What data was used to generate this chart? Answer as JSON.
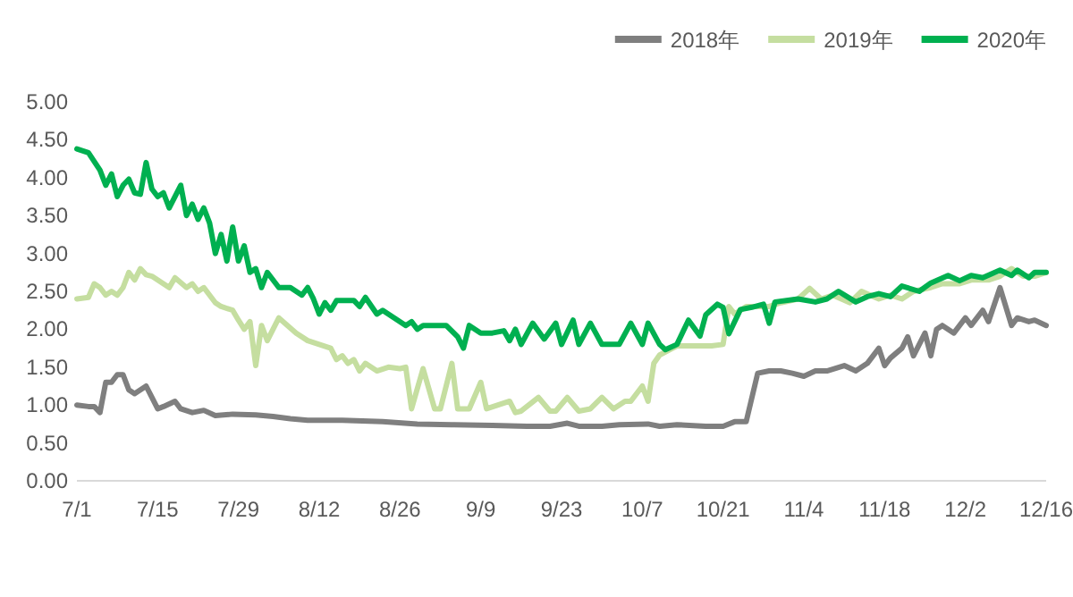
{
  "chart_data": {
    "type": "line",
    "legend": "top right",
    "line_style": "solid",
    "marker": "none",
    "xlim": [
      "--07-01",
      "--12-16"
    ],
    "xticks": [
      {
        "value": "--07-01",
        "label": "7/1"
      },
      {
        "value": "--07-15",
        "label": "7/15"
      },
      {
        "value": "--07-29",
        "label": "7/29"
      },
      {
        "value": "--08-12",
        "label": "8/12"
      },
      {
        "value": "--08-26",
        "label": "8/26"
      },
      {
        "value": "--09-09",
        "label": "9/9"
      },
      {
        "value": "--09-23",
        "label": "9/23"
      },
      {
        "value": "--10-07",
        "label": "10/7"
      },
      {
        "value": "--10-21",
        "label": "10/21"
      },
      {
        "value": "--11-04",
        "label": "11/4"
      },
      {
        "value": "--11-18",
        "label": "11/18"
      },
      {
        "value": "--12-02",
        "label": "12/2"
      },
      {
        "value": "--12-16",
        "label": "12/16"
      }
    ],
    "ylim": [
      0,
      5
    ],
    "yticks": [
      {
        "value": 0,
        "label": "0.00"
      },
      {
        "value": 0.5,
        "label": "0.50"
      },
      {
        "value": 1,
        "label": "1.00"
      },
      {
        "value": 1.5,
        "label": "1.50"
      },
      {
        "value": 2,
        "label": "2.00"
      },
      {
        "value": 2.5,
        "label": "2.50"
      },
      {
        "value": 3,
        "label": "3.00"
      },
      {
        "value": 3.5,
        "label": "3.50"
      },
      {
        "value": 4,
        "label": "4.00"
      },
      {
        "value": 4.5,
        "label": "4.50"
      },
      {
        "value": 5,
        "label": "5.00"
      }
    ],
    "series": [
      {
        "name": "2018年",
        "color": "#7f7f7f",
        "x": [
          "--07-01",
          "--07-03",
          "--07-04",
          "--07-05",
          "--07-06",
          "--07-07",
          "--07-08",
          "--07-09",
          "--07-10",
          "--07-11",
          "--07-13",
          "--07-14",
          "--07-15",
          "--07-16",
          "--07-18",
          "--07-19",
          "--07-21",
          "--07-23",
          "--07-25",
          "--07-28",
          "--08-01",
          "--08-04",
          "--08-07",
          "--08-10",
          "--08-16",
          "--08-23",
          "--08-29",
          "--09-04",
          "--09-11",
          "--09-17",
          "--09-21",
          "--09-24",
          "--09-26",
          "--09-30",
          "--10-03",
          "--10-08",
          "--10-10",
          "--10-13",
          "--10-18",
          "--10-21",
          "--10-23",
          "--10-25",
          "--10-27",
          "--10-29",
          "--10-31",
          "--11-02",
          "--11-04",
          "--11-06",
          "--11-08",
          "--11-11",
          "--11-13",
          "--11-15",
          "--11-17",
          "--11-18",
          "--11-19",
          "--11-21",
          "--11-22",
          "--11-23",
          "--11-25",
          "--11-26",
          "--11-27",
          "--11-28",
          "--11-30",
          "--12-02",
          "--12-03",
          "--12-05",
          "--12-06",
          "--12-08",
          "--12-10",
          "--12-11",
          "--12-13",
          "--12-14",
          "--12-16"
        ],
        "values": [
          1.0,
          0.98,
          0.98,
          0.9,
          1.3,
          1.3,
          1.4,
          1.4,
          1.2,
          1.15,
          1.25,
          1.1,
          0.95,
          0.98,
          1.05,
          0.95,
          0.9,
          0.93,
          0.86,
          0.88,
          0.87,
          0.85,
          0.82,
          0.8,
          0.8,
          0.78,
          0.75,
          0.74,
          0.73,
          0.72,
          0.72,
          0.76,
          0.72,
          0.72,
          0.74,
          0.75,
          0.72,
          0.74,
          0.72,
          0.72,
          0.78,
          0.78,
          1.42,
          1.45,
          1.45,
          1.42,
          1.38,
          1.45,
          1.45,
          1.52,
          1.45,
          1.55,
          1.75,
          1.52,
          1.62,
          1.75,
          1.9,
          1.65,
          1.95,
          1.65,
          2.0,
          2.05,
          1.95,
          2.15,
          2.05,
          2.25,
          2.1,
          2.55,
          2.05,
          2.15,
          2.1,
          2.12,
          2.05
        ]
      },
      {
        "name": "2019年",
        "color": "#c5dea0",
        "x": [
          "--07-01",
          "--07-03",
          "--07-04",
          "--07-05",
          "--07-06",
          "--07-07",
          "--07-08",
          "--07-09",
          "--07-10",
          "--07-11",
          "--07-12",
          "--07-13",
          "--07-14",
          "--07-16",
          "--07-17",
          "--07-18",
          "--07-20",
          "--07-21",
          "--07-22",
          "--07-23",
          "--07-24",
          "--07-25",
          "--07-26",
          "--07-28",
          "--07-29",
          "--07-30",
          "--07-31",
          "--08-01",
          "--08-02",
          "--08-03",
          "--08-04",
          "--08-05",
          "--08-08",
          "--08-10",
          "--08-12",
          "--08-14",
          "--08-15",
          "--08-16",
          "--08-17",
          "--08-18",
          "--08-19",
          "--08-20",
          "--08-22",
          "--08-24",
          "--08-26",
          "--08-27",
          "--08-28",
          "--08-30",
          "--09-01",
          "--09-02",
          "--09-04",
          "--09-05",
          "--09-07",
          "--09-09",
          "--09-10",
          "--09-12",
          "--09-14",
          "--09-15",
          "--09-16",
          "--09-19",
          "--09-21",
          "--09-22",
          "--09-24",
          "--09-26",
          "--09-28",
          "--09-30",
          "--10-02",
          "--10-04",
          "--10-05",
          "--10-07",
          "--10-08",
          "--10-09",
          "--10-10",
          "--10-11",
          "--10-13",
          "--10-16",
          "--10-19",
          "--10-21",
          "--10-22",
          "--10-23",
          "--10-25",
          "--10-27",
          "--10-29",
          "--10-31",
          "--11-03",
          "--11-05",
          "--11-07",
          "--11-09",
          "--11-12",
          "--11-14",
          "--11-17",
          "--11-19",
          "--11-21",
          "--11-23",
          "--11-26",
          "--11-28",
          "--12-01",
          "--12-03",
          "--12-06",
          "--12-08",
          "--12-10",
          "--12-12",
          "--12-14",
          "--12-16"
        ],
        "values": [
          2.4,
          2.42,
          2.6,
          2.55,
          2.45,
          2.5,
          2.45,
          2.55,
          2.75,
          2.65,
          2.8,
          2.72,
          2.7,
          2.6,
          2.55,
          2.68,
          2.55,
          2.6,
          2.5,
          2.55,
          2.45,
          2.35,
          2.3,
          2.25,
          2.12,
          2.0,
          2.1,
          1.52,
          2.05,
          1.85,
          2.0,
          2.15,
          1.95,
          1.85,
          1.8,
          1.75,
          1.6,
          1.65,
          1.55,
          1.6,
          1.45,
          1.55,
          1.45,
          1.5,
          1.48,
          1.5,
          0.95,
          1.48,
          0.95,
          0.95,
          1.55,
          0.95,
          0.95,
          1.3,
          0.95,
          1.0,
          1.05,
          0.9,
          0.92,
          1.1,
          0.92,
          0.92,
          1.1,
          0.92,
          0.95,
          1.1,
          0.95,
          1.05,
          1.05,
          1.25,
          1.05,
          1.55,
          1.66,
          1.7,
          1.78,
          1.78,
          1.78,
          1.8,
          2.3,
          2.2,
          2.3,
          2.3,
          2.3,
          2.35,
          2.4,
          2.54,
          2.4,
          2.45,
          2.35,
          2.5,
          2.4,
          2.45,
          2.4,
          2.5,
          2.55,
          2.6,
          2.6,
          2.65,
          2.65,
          2.7,
          2.8,
          2.7,
          2.7,
          2.75
        ]
      },
      {
        "name": "2020年",
        "color": "#00b050",
        "x": [
          "--07-01",
          "--07-03",
          "--07-05",
          "--07-06",
          "--07-07",
          "--07-08",
          "--07-09",
          "--07-10",
          "--07-11",
          "--07-12",
          "--07-13",
          "--07-14",
          "--07-15",
          "--07-16",
          "--07-17",
          "--07-19",
          "--07-20",
          "--07-21",
          "--07-22",
          "--07-23",
          "--07-24",
          "--07-25",
          "--07-26",
          "--07-27",
          "--07-28",
          "--07-29",
          "--07-30",
          "--07-31",
          "--08-01",
          "--08-02",
          "--08-03",
          "--08-05",
          "--08-07",
          "--08-09",
          "--08-10",
          "--08-11",
          "--08-12",
          "--08-13",
          "--08-14",
          "--08-15",
          "--08-18",
          "--08-19",
          "--08-20",
          "--08-22",
          "--08-23",
          "--08-25",
          "--08-27",
          "--08-28",
          "--08-29",
          "--08-30",
          "--09-01",
          "--09-03",
          "--09-05",
          "--09-06",
          "--09-07",
          "--09-09",
          "--09-11",
          "--09-13",
          "--09-14",
          "--09-15",
          "--09-16",
          "--09-18",
          "--09-20",
          "--09-22",
          "--09-23",
          "--09-25",
          "--09-26",
          "--09-28",
          "--09-30",
          "--10-03",
          "--10-05",
          "--10-07",
          "--10-08",
          "--10-10",
          "--10-11",
          "--10-13",
          "--10-15",
          "--10-17",
          "--10-18",
          "--10-20",
          "--10-21",
          "--10-22",
          "--10-24",
          "--10-26",
          "--10-28",
          "--10-29",
          "--10-30",
          "--11-03",
          "--11-06",
          "--11-08",
          "--11-10",
          "--11-13",
          "--11-15",
          "--11-17",
          "--11-19",
          "--11-21",
          "--11-24",
          "--11-26",
          "--11-29",
          "--12-01",
          "--12-03",
          "--12-05",
          "--12-08",
          "--12-10",
          "--12-11",
          "--12-13",
          "--12-14",
          "--12-16"
        ],
        "values": [
          4.38,
          4.33,
          4.1,
          3.9,
          4.05,
          3.75,
          3.9,
          3.98,
          3.8,
          3.78,
          4.2,
          3.85,
          3.75,
          3.8,
          3.6,
          3.9,
          3.5,
          3.65,
          3.45,
          3.6,
          3.4,
          3.0,
          3.25,
          2.9,
          3.35,
          2.9,
          3.1,
          2.75,
          2.8,
          2.55,
          2.75,
          2.55,
          2.55,
          2.45,
          2.55,
          2.4,
          2.2,
          2.35,
          2.25,
          2.38,
          2.38,
          2.3,
          2.42,
          2.2,
          2.25,
          2.15,
          2.05,
          2.1,
          2.0,
          2.05,
          2.05,
          2.05,
          1.9,
          1.75,
          2.05,
          1.95,
          1.95,
          1.98,
          1.85,
          2.0,
          1.8,
          2.08,
          1.87,
          2.08,
          1.8,
          2.12,
          1.8,
          2.08,
          1.8,
          1.8,
          2.08,
          1.8,
          2.08,
          1.8,
          1.73,
          1.8,
          2.12,
          1.91,
          2.19,
          2.33,
          2.29,
          1.94,
          2.26,
          2.29,
          2.33,
          2.08,
          2.36,
          2.4,
          2.36,
          2.4,
          2.5,
          2.36,
          2.43,
          2.47,
          2.43,
          2.57,
          2.5,
          2.61,
          2.71,
          2.64,
          2.71,
          2.68,
          2.78,
          2.71,
          2.78,
          2.68,
          2.75,
          2.75
        ]
      }
    ]
  }
}
